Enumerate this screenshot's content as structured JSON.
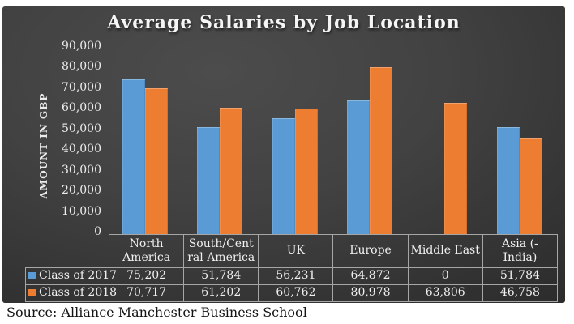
{
  "source_text": "Source: Alliance Manchester Business School",
  "chart_data": {
    "type": "bar",
    "title": "Average Salaries by Job Location",
    "ylabel": "AMOUNT IN GBP",
    "xlabel": "",
    "categories": [
      "North America",
      "South/Central America",
      "UK",
      "Europe",
      "Middle East",
      "Asia (- India)"
    ],
    "category_display_labels": [
      "North\nAmerica",
      "South/Cent\nral America",
      "UK",
      "Europe",
      "Middle East",
      "Asia (-\nIndia)"
    ],
    "series": [
      {
        "name": "Class of 2017",
        "color": "#5B9BD5",
        "values": [
          75202,
          51784,
          56231,
          64872,
          0,
          51784
        ]
      },
      {
        "name": "Class of 2018",
        "color": "#ED7D31",
        "values": [
          70717,
          61202,
          60762,
          80978,
          63806,
          46758
        ]
      }
    ],
    "ylim": [
      0,
      90000
    ],
    "ytick_step": 10000,
    "grid": false,
    "legend_position": "data-table-left",
    "data_table": true,
    "colors": {
      "class_of_2017": "#5B9BD5",
      "class_of_2018": "#ED7D31",
      "panel_background": "#3c3c3c",
      "table_border": "#a6a6a6",
      "chart_text": "#f0f0f0",
      "source_text": "#141414"
    }
  }
}
